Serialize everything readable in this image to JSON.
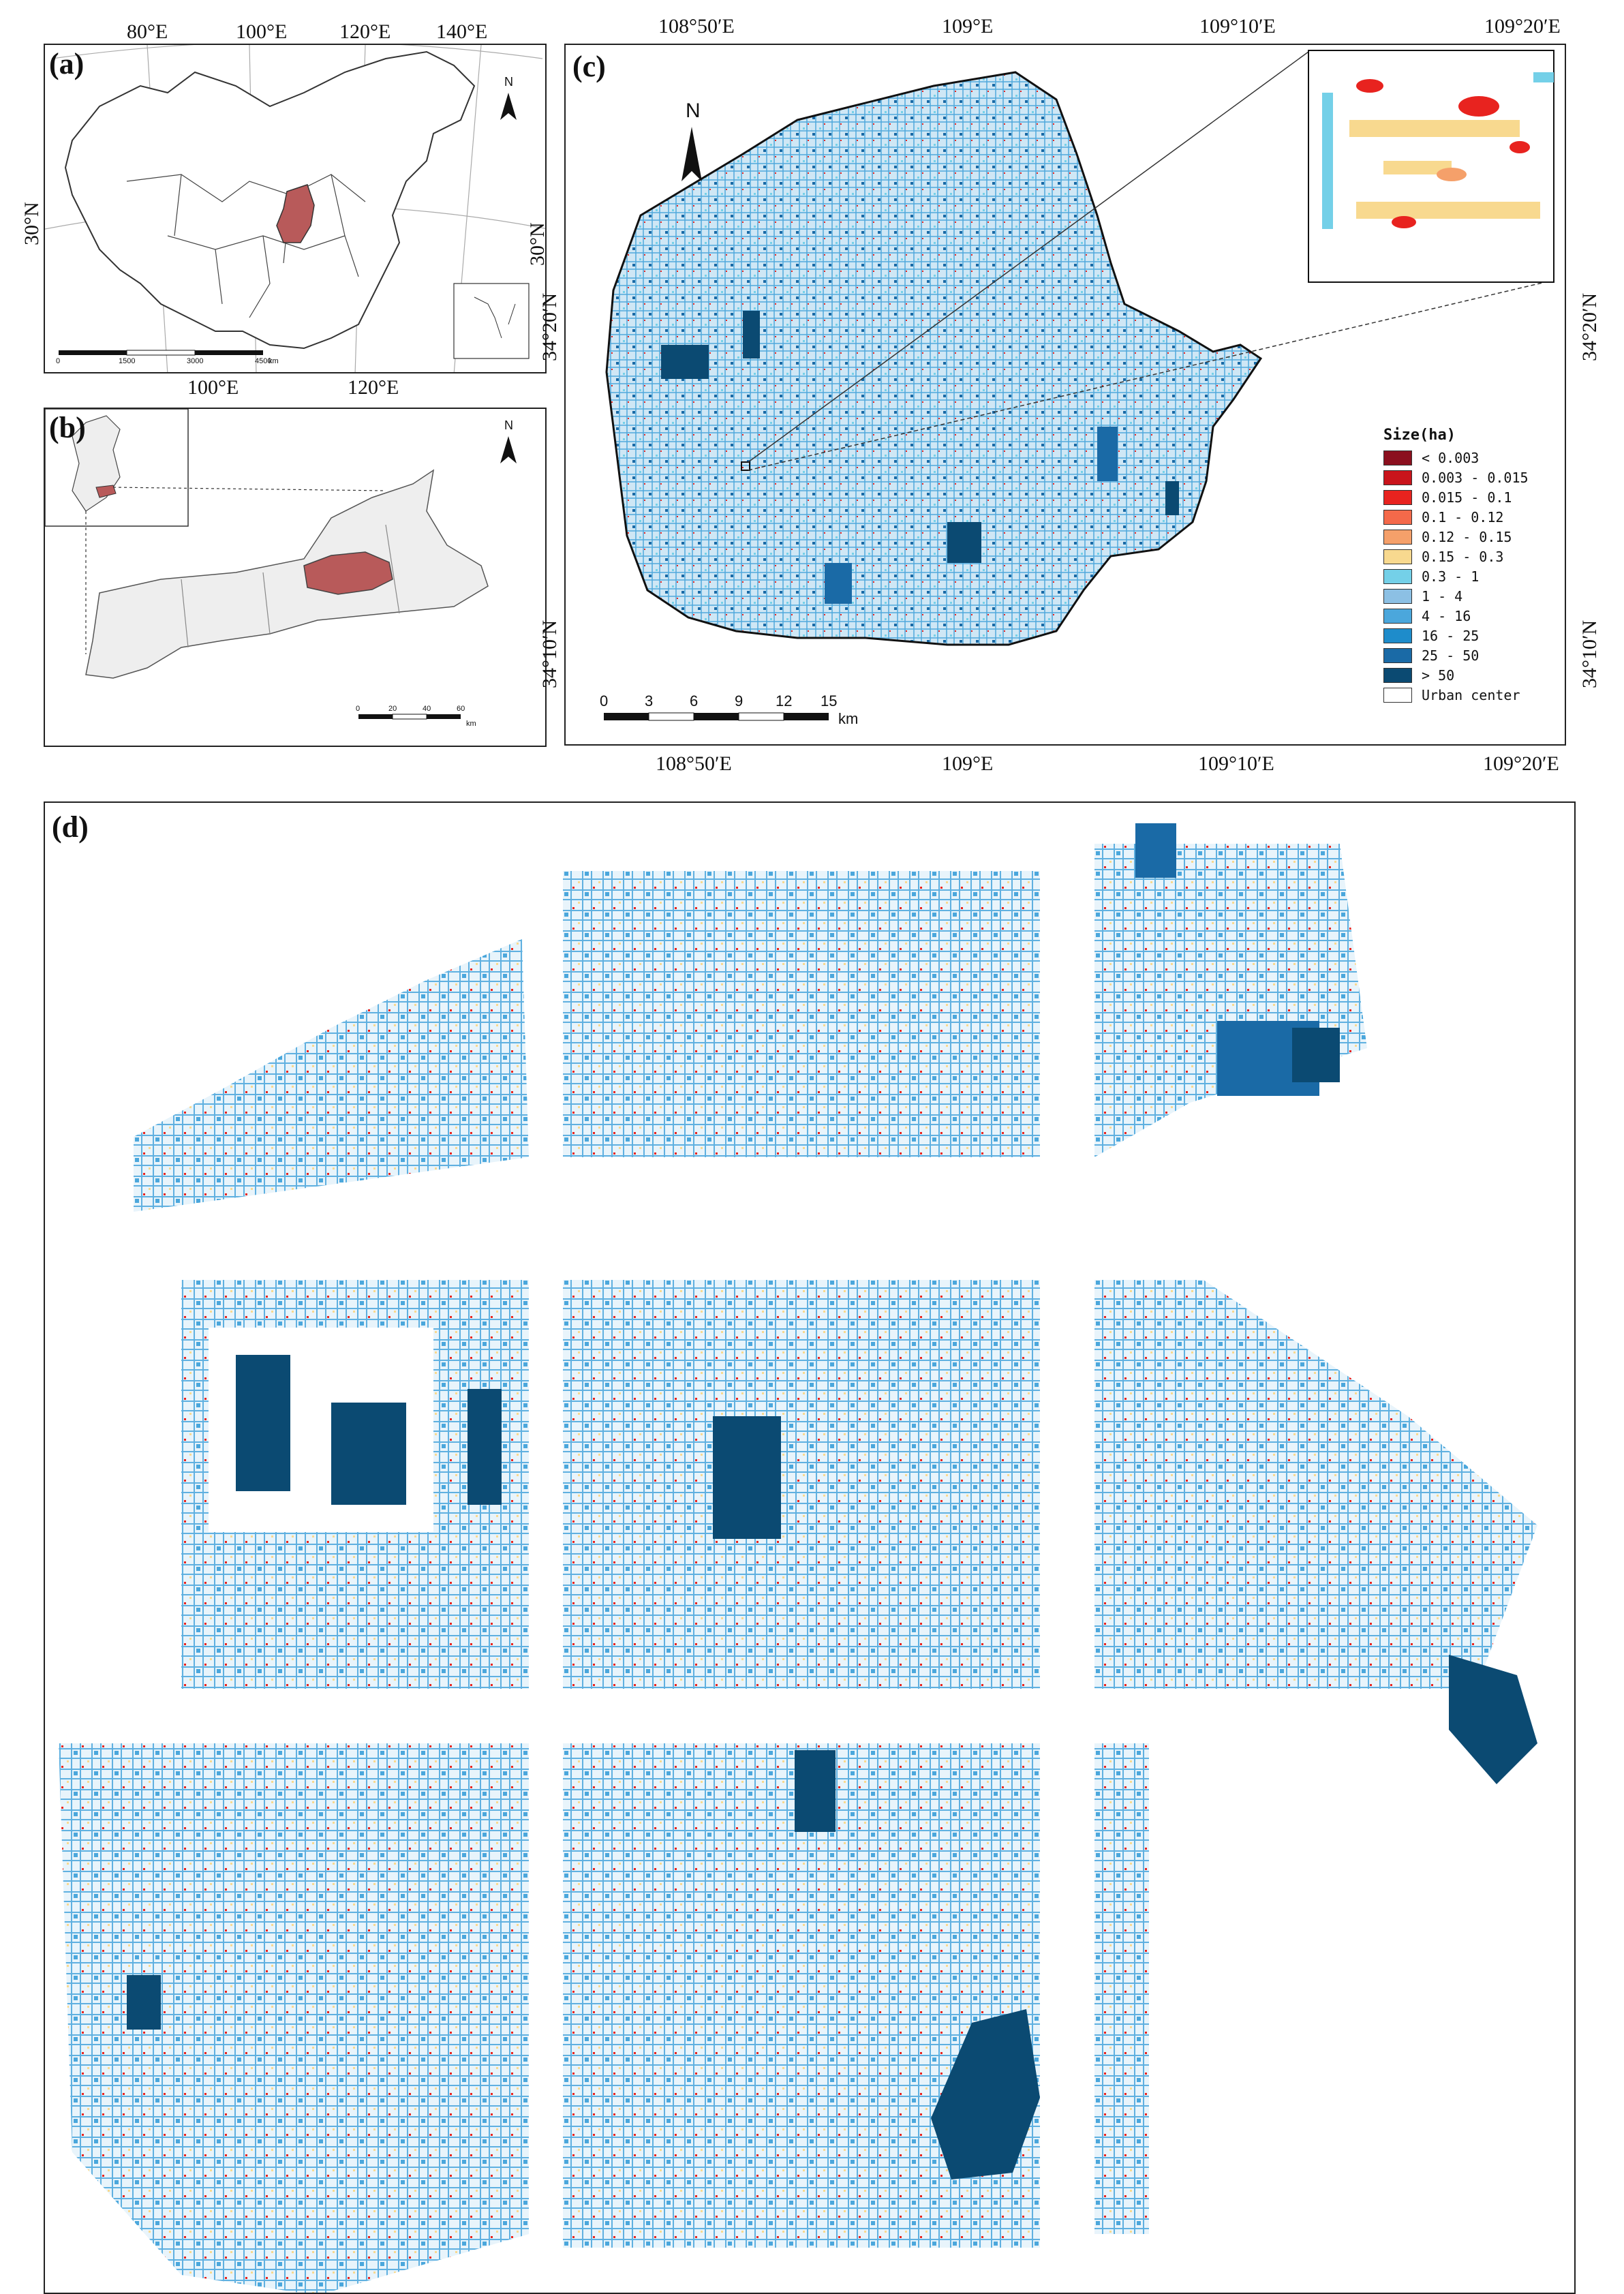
{
  "panel_a": {
    "label": "(a)",
    "top_lon_labels": [
      "80°E",
      "100°E",
      "120°E",
      "140°E"
    ],
    "bottom_lon_labels": [
      "100°E",
      "120°E"
    ],
    "lat_left": "30°N",
    "lat_right": "30°N",
    "north": "N",
    "scale_ticks": [
      "0",
      "1500",
      "3000",
      "4500"
    ],
    "scale_unit": "km",
    "highlight_color": "#b85a5a"
  },
  "panel_b": {
    "label": "(b)",
    "north": "N",
    "scale_ticks": [
      "0",
      "20",
      "40",
      "60"
    ],
    "scale_unit": "km",
    "highlight_color": "#b85a5a"
  },
  "panel_c": {
    "label": "(c)",
    "top_lon_labels": [
      "108°50′E",
      "109°E",
      "109°10′E",
      "109°20′E"
    ],
    "bottom_lon_labels": [
      "108°50′E",
      "109°E",
      "109°10′E",
      "109°20′E"
    ],
    "lat_labels_left": [
      "34°20′N",
      "34°10′N"
    ],
    "lat_labels_right": [
      "34°20′N",
      "34°10′N"
    ],
    "north": "N",
    "scale_ticks": [
      "0",
      "3",
      "6",
      "9",
      "12",
      "15"
    ],
    "scale_unit": "km",
    "legend": {
      "title": "Size(ha)",
      "items": [
        {
          "label": "< 0.003",
          "color": "#8b0f1e"
        },
        {
          "label": "0.003 - 0.015",
          "color": "#c9141b"
        },
        {
          "label": "0.015 - 0.1",
          "color": "#e8231f"
        },
        {
          "label": "0.1 - 0.12",
          "color": "#f4694a"
        },
        {
          "label": "0.12 - 0.15",
          "color": "#f5a06a"
        },
        {
          "label": "0.15 - 0.3",
          "color": "#f8d98f"
        },
        {
          "label": "0.3 - 1",
          "color": "#74d0e8"
        },
        {
          "label": "1 - 4",
          "color": "#8cc0e4"
        },
        {
          "label": "4 - 16",
          "color": "#4ba7dc"
        },
        {
          "label": "16 - 25",
          "color": "#1e8ccb"
        },
        {
          "label": "25 - 50",
          "color": "#1a6aa6"
        },
        {
          "label": "> 50",
          "color": "#0b4a72"
        },
        {
          "label": "Urban center",
          "color": "#ffffff"
        }
      ]
    }
  },
  "panel_d": {
    "label": "(d)"
  }
}
